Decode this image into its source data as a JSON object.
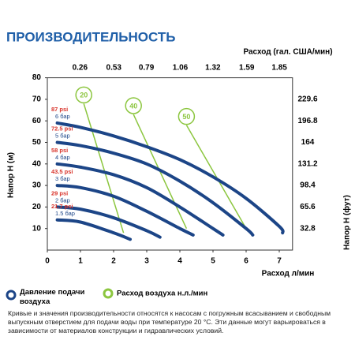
{
  "chart_data": {
    "type": "line",
    "title": "ПРОИЗВОДИТЕЛЬНОСТЬ",
    "xlabel": "Расход л/мин",
    "ylabel": "Напор H (м)",
    "x2label": "Расход (гал. США/мин)",
    "y2label": "Напор H (фут)",
    "xlim": [
      0,
      7.4
    ],
    "ylim": [
      0,
      80
    ],
    "xticks": [
      0,
      1,
      2,
      3,
      4,
      5,
      6,
      7
    ],
    "yticks": [
      10,
      20,
      30,
      40,
      50,
      60,
      70,
      80
    ],
    "x2lim": [
      0,
      1.955
    ],
    "x2ticks": [
      0.26,
      0.53,
      0.79,
      1.06,
      1.32,
      1.59,
      1.85
    ],
    "y2lim": [
      0,
      262.4
    ],
    "y2ticks": [
      32.8,
      65.6,
      98.4,
      131.2,
      164,
      196.8,
      229.6
    ],
    "pressure_legend": "Давление подачи воздуха",
    "pressure_color": "#1c4587",
    "psi_color": "#d9342b",
    "air_legend": "Расход воздуха н.л./мин",
    "air_color": "#8cc63f",
    "series": [
      {
        "name": "6 бар",
        "psi": "87 psi",
        "x": [
          0.3,
          1,
          2,
          3,
          4,
          5,
          6,
          7,
          7.1
        ],
        "values": [
          59,
          57,
          53,
          48,
          42,
          34,
          24,
          11,
          8
        ]
      },
      {
        "name": "5 бар",
        "psi": "72.5 psi",
        "x": [
          0.3,
          1,
          2,
          3,
          4,
          5,
          6,
          6.2
        ],
        "values": [
          50,
          48.5,
          45,
          40,
          32,
          22,
          10,
          7
        ]
      },
      {
        "name": "4 бар",
        "psi": "58 psi",
        "x": [
          0.3,
          1,
          2,
          3,
          4,
          5,
          5.3
        ],
        "values": [
          40,
          38.5,
          35,
          29,
          20,
          10,
          7
        ]
      },
      {
        "name": "3 бар",
        "psi": "43.5 psi",
        "x": [
          0.3,
          1,
          2,
          3,
          4,
          4.4
        ],
        "values": [
          30,
          29,
          25,
          18,
          10,
          7
        ]
      },
      {
        "name": "2 бар",
        "psi": "29 psi",
        "x": [
          0.3,
          1,
          2,
          3,
          3.4
        ],
        "values": [
          20,
          19,
          15,
          9,
          6
        ]
      },
      {
        "name": "1.5 бар",
        "psi": "21.7 psi",
        "x": [
          0.3,
          1,
          2,
          2.5
        ],
        "values": [
          14,
          13,
          8,
          5
        ]
      }
    ],
    "air_series": [
      {
        "name": "20",
        "x": [
          1.1,
          2.3
        ],
        "values": [
          68,
          8
        ]
      },
      {
        "name": "40",
        "x": [
          2.6,
          4.2
        ],
        "values": [
          63,
          10
        ]
      },
      {
        "name": "50",
        "x": [
          4.2,
          6.0
        ],
        "values": [
          58,
          10
        ]
      }
    ],
    "footnote": "Кривые и значения производительности относятся к насосам с погружным всасыванием и свободным выпускным отверстием для подачи воды при температуре 20 °C. Эти данные могут варьироваться в зависимости от материалов конструкции и гидравлических условий."
  }
}
